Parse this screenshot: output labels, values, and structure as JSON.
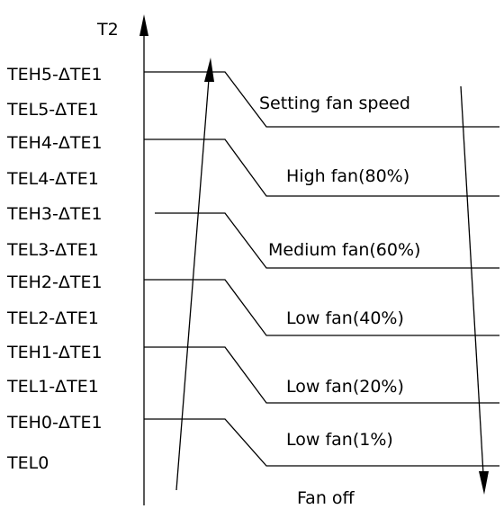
{
  "axis_label": "T2",
  "thresholds": [
    "TEH5-ΔTE1",
    "TEL5-ΔTE1",
    "TEH4-ΔTE1",
    "TEL4-ΔTE1",
    "TEH3-ΔTE1",
    "TEL3-ΔTE1",
    "TEH2-ΔTE1",
    "TEL2-ΔTE1",
    "TEH1-ΔTE1",
    "TEL1-ΔTE1",
    "TEH0-ΔTE1",
    "TEL0"
  ],
  "fan_states": [
    "Setting fan speed",
    "High fan(80%)",
    "Medium fan(60%)",
    "Low fan(40%)",
    "Low fan(20%)",
    "Low fan(1%)",
    "Fan off"
  ],
  "colors": {
    "line": "#000000",
    "background": "#ffffff"
  }
}
